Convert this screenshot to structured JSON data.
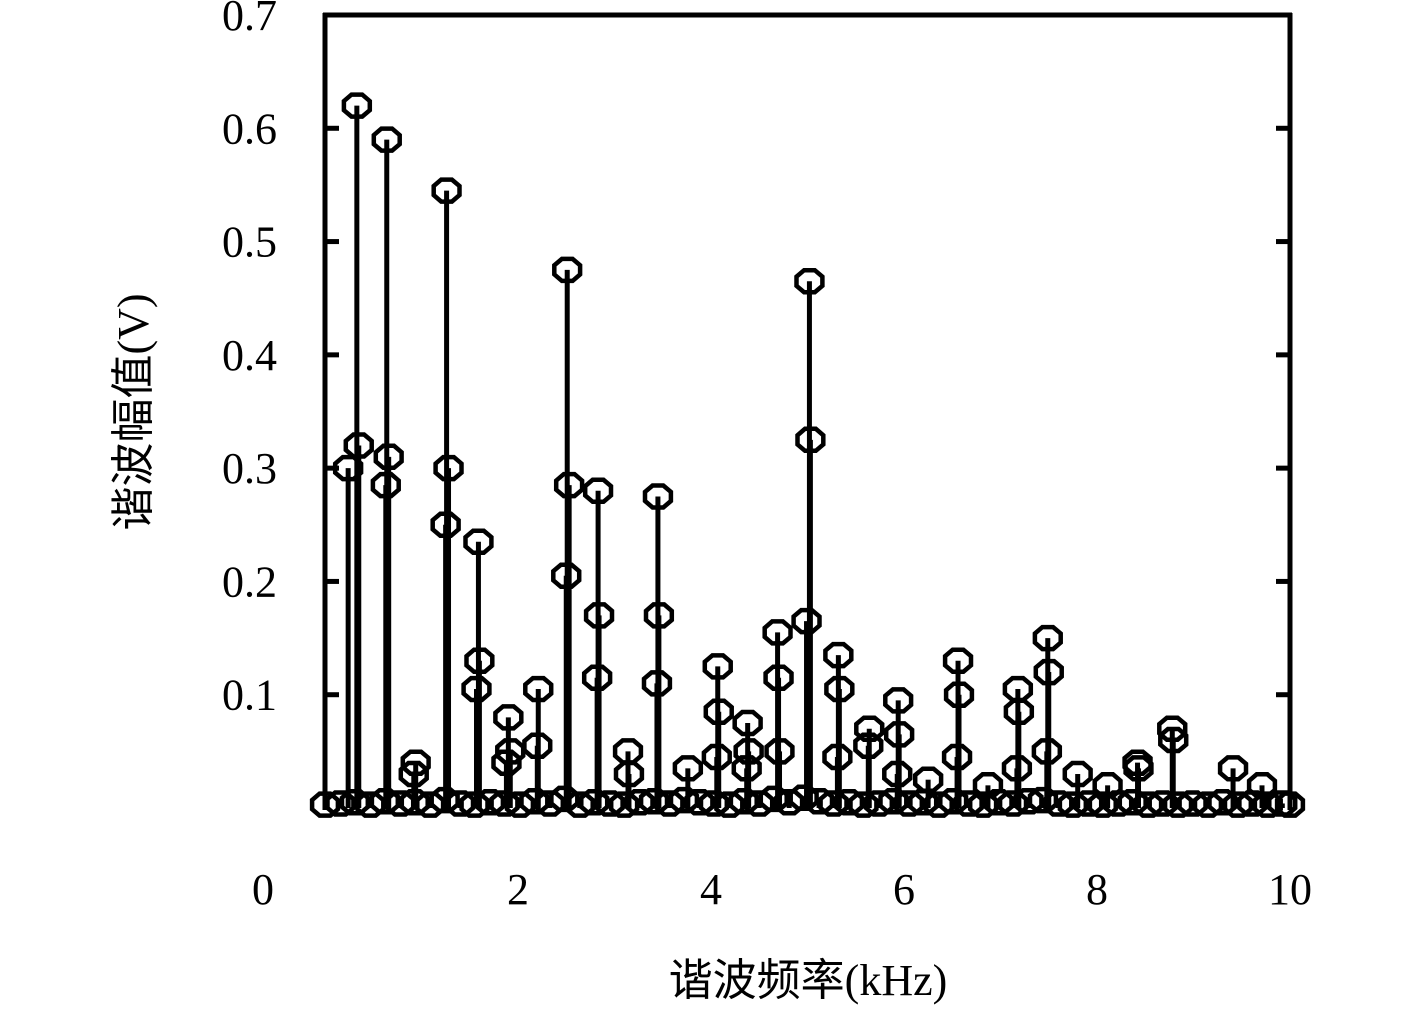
{
  "chart_data": {
    "type": "stem",
    "title": "",
    "xlabel": "谐波频率(kHz)",
    "ylabel": "谐波幅值(V)",
    "xlim": [
      0,
      10
    ],
    "ylim": [
      0,
      0.7
    ],
    "xticks": [
      "0",
      "2",
      "4",
      "6",
      "8",
      "10"
    ],
    "yticks": [
      "0.1",
      "0.2",
      "0.3",
      "0.4",
      "0.5",
      "0.6",
      "0.7"
    ],
    "grid": false,
    "marker": "circle",
    "color": "#000000",
    "points": [
      [
        0.33,
        0.62
      ],
      [
        0.35,
        0.32
      ],
      [
        0.24,
        0.3
      ],
      [
        0.64,
        0.59
      ],
      [
        0.66,
        0.31
      ],
      [
        0.63,
        0.285
      ],
      [
        1.26,
        0.545
      ],
      [
        1.28,
        0.3
      ],
      [
        1.25,
        0.25
      ],
      [
        1.59,
        0.235
      ],
      [
        1.6,
        0.13
      ],
      [
        1.57,
        0.105
      ],
      [
        0.94,
        0.04
      ],
      [
        0.92,
        0.03
      ],
      [
        1.9,
        0.08
      ],
      [
        1.92,
        0.05
      ],
      [
        1.88,
        0.04
      ],
      [
        2.21,
        0.105
      ],
      [
        2.2,
        0.055
      ],
      [
        2.51,
        0.475
      ],
      [
        2.53,
        0.285
      ],
      [
        2.5,
        0.205
      ],
      [
        2.83,
        0.28
      ],
      [
        2.84,
        0.17
      ],
      [
        2.82,
        0.115
      ],
      [
        3.14,
        0.05
      ],
      [
        3.15,
        0.03
      ],
      [
        3.45,
        0.275
      ],
      [
        3.46,
        0.17
      ],
      [
        3.44,
        0.11
      ],
      [
        3.76,
        0.035
      ],
      [
        4.07,
        0.125
      ],
      [
        4.08,
        0.085
      ],
      [
        4.06,
        0.045
      ],
      [
        4.38,
        0.075
      ],
      [
        4.39,
        0.05
      ],
      [
        4.37,
        0.035
      ],
      [
        4.69,
        0.155
      ],
      [
        4.7,
        0.115
      ],
      [
        4.71,
        0.05
      ],
      [
        5.02,
        0.465
      ],
      [
        5.03,
        0.325
      ],
      [
        4.99,
        0.165
      ],
      [
        5.32,
        0.135
      ],
      [
        5.33,
        0.105
      ],
      [
        5.31,
        0.045
      ],
      [
        5.64,
        0.07
      ],
      [
        5.63,
        0.055
      ],
      [
        5.94,
        0.095
      ],
      [
        5.95,
        0.065
      ],
      [
        5.93,
        0.03
      ],
      [
        6.25,
        0.025
      ],
      [
        6.56,
        0.13
      ],
      [
        6.57,
        0.1
      ],
      [
        6.55,
        0.045
      ],
      [
        6.87,
        0.02
      ],
      [
        7.18,
        0.105
      ],
      [
        7.19,
        0.085
      ],
      [
        7.17,
        0.035
      ],
      [
        7.49,
        0.15
      ],
      [
        7.5,
        0.12
      ],
      [
        7.48,
        0.05
      ],
      [
        7.8,
        0.03
      ],
      [
        8.11,
        0.02
      ],
      [
        8.42,
        0.04
      ],
      [
        8.43,
        0.035
      ],
      [
        8.78,
        0.07
      ],
      [
        8.79,
        0.06
      ],
      [
        9.41,
        0.035
      ],
      [
        9.71,
        0.02
      ]
    ],
    "baseline_points": [
      [
        0.0,
        0.003
      ],
      [
        0.16,
        0.004
      ],
      [
        0.31,
        0.005
      ],
      [
        0.47,
        0.003
      ],
      [
        0.62,
        0.006
      ],
      [
        0.78,
        0.004
      ],
      [
        0.93,
        0.005
      ],
      [
        1.09,
        0.003
      ],
      [
        1.24,
        0.007
      ],
      [
        1.4,
        0.004
      ],
      [
        1.55,
        0.003
      ],
      [
        1.71,
        0.005
      ],
      [
        1.86,
        0.004
      ],
      [
        2.02,
        0.003
      ],
      [
        2.17,
        0.006
      ],
      [
        2.33,
        0.004
      ],
      [
        2.48,
        0.008
      ],
      [
        2.64,
        0.003
      ],
      [
        2.79,
        0.005
      ],
      [
        2.95,
        0.004
      ],
      [
        3.1,
        0.003
      ],
      [
        3.26,
        0.005
      ],
      [
        3.41,
        0.006
      ],
      [
        3.57,
        0.004
      ],
      [
        3.72,
        0.007
      ],
      [
        3.88,
        0.005
      ],
      [
        4.03,
        0.004
      ],
      [
        4.19,
        0.003
      ],
      [
        4.34,
        0.006
      ],
      [
        4.5,
        0.004
      ],
      [
        4.65,
        0.008
      ],
      [
        4.81,
        0.005
      ],
      [
        4.96,
        0.009
      ],
      [
        5.12,
        0.006
      ],
      [
        5.27,
        0.004
      ],
      [
        5.43,
        0.005
      ],
      [
        5.58,
        0.003
      ],
      [
        5.74,
        0.004
      ],
      [
        5.89,
        0.006
      ],
      [
        6.05,
        0.004
      ],
      [
        6.2,
        0.005
      ],
      [
        6.36,
        0.003
      ],
      [
        6.51,
        0.006
      ],
      [
        6.67,
        0.004
      ],
      [
        6.82,
        0.003
      ],
      [
        6.98,
        0.005
      ],
      [
        7.13,
        0.004
      ],
      [
        7.29,
        0.006
      ],
      [
        7.44,
        0.007
      ],
      [
        7.6,
        0.004
      ],
      [
        7.75,
        0.003
      ],
      [
        7.91,
        0.004
      ],
      [
        8.06,
        0.003
      ],
      [
        8.22,
        0.004
      ],
      [
        8.37,
        0.005
      ],
      [
        8.53,
        0.003
      ],
      [
        8.68,
        0.004
      ],
      [
        8.84,
        0.003
      ],
      [
        8.99,
        0.004
      ],
      [
        9.15,
        0.003
      ],
      [
        9.3,
        0.005
      ],
      [
        9.46,
        0.003
      ],
      [
        9.61,
        0.004
      ],
      [
        9.77,
        0.003
      ],
      [
        9.92,
        0.004
      ],
      [
        10.0,
        0.003
      ]
    ]
  }
}
